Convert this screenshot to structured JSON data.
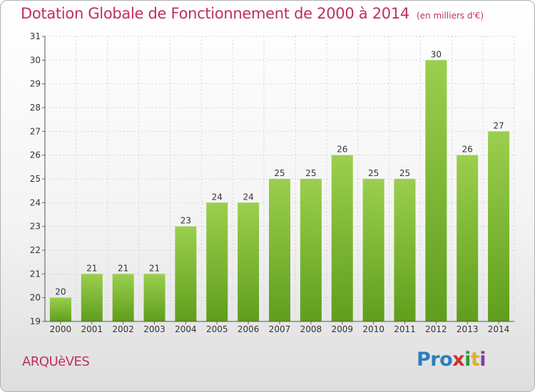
{
  "title": "Dotation Globale de Fonctionnement de 2000 à 2014",
  "units": "(en milliers d'€)",
  "place": "ARQUèVES",
  "logo": {
    "p1": "Pro",
    "p2": "x",
    "p3": "i",
    "p4": "t",
    "p5": "i"
  },
  "colors": {
    "bar_top": "#9bcf4e",
    "bar_bottom": "#5f9e1c",
    "title": "#c0305a"
  },
  "chart_data": {
    "type": "bar",
    "title": "Dotation Globale de Fonctionnement de 2000 à 2014",
    "xlabel": "",
    "ylabel": "",
    "categories": [
      "2000",
      "2001",
      "2002",
      "2003",
      "2004",
      "2005",
      "2006",
      "2007",
      "2008",
      "2009",
      "2010",
      "2011",
      "2012",
      "2013",
      "2014"
    ],
    "values": [
      20,
      21,
      21,
      21,
      23,
      24,
      24,
      25,
      25,
      26,
      25,
      25,
      30,
      26,
      27
    ],
    "ylim": [
      19,
      31
    ],
    "yticks": [
      19,
      20,
      21,
      22,
      23,
      24,
      25,
      26,
      27,
      28,
      29,
      30,
      31
    ],
    "grid": true
  }
}
